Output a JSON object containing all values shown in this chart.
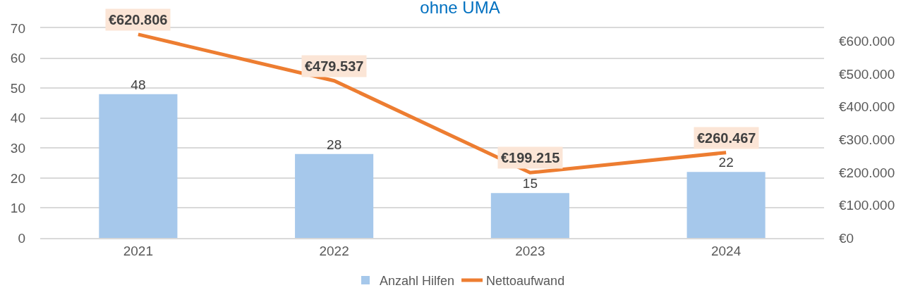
{
  "chart_data": {
    "type": "bar",
    "title": "ohne UMA",
    "categories": [
      "2021",
      "2022",
      "2023",
      "2024"
    ],
    "series": [
      {
        "name": "Anzahl Hilfen",
        "color": "#a6c8eb",
        "values": [
          48,
          28,
          15,
          22
        ],
        "value_labels": [
          "48",
          "28",
          "15",
          "22"
        ]
      },
      {
        "name": "Nettoaufwand",
        "type": "line",
        "axis": "y2",
        "color": "#ed7d31",
        "values": [
          620806,
          479537,
          199215,
          260467
        ],
        "value_labels": [
          "€620.806",
          "€479.537",
          "€199.215",
          "€260.467"
        ]
      }
    ],
    "ylim": [
      0,
      70
    ],
    "yticks": [
      0,
      10,
      20,
      30,
      40,
      50,
      60,
      70
    ],
    "y2lim": [
      0,
      640000
    ],
    "y2ticks": [
      {
        "value": 0,
        "label": "€0"
      },
      {
        "value": 100000,
        "label": "€100.000"
      },
      {
        "value": 200000,
        "label": "€200.000"
      },
      {
        "value": 300000,
        "label": "€300.000"
      },
      {
        "value": 400000,
        "label": "€400.000"
      },
      {
        "value": 500000,
        "label": "€500.000"
      },
      {
        "value": 600000,
        "label": "€600.000"
      }
    ],
    "grid": "y",
    "legend": "bottom",
    "marker": "none",
    "line_style": "solid"
  }
}
